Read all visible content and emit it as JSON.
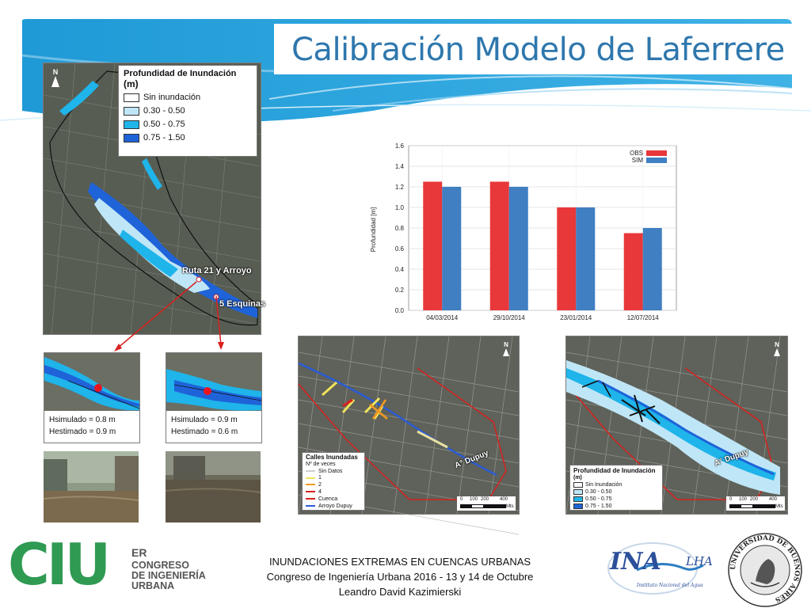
{
  "slide": {
    "title": "Calibración Modelo de Laferrere"
  },
  "main_map": {
    "north": "N",
    "legend_title": "Profundidad de Inundación",
    "legend_unit": "(m)",
    "legend": [
      {
        "label": "Sin inundación",
        "color": "#ffffff"
      },
      {
        "label": "0.30 - 0.50",
        "color": "#bfe6f7"
      },
      {
        "label": "0.50 - 0.75",
        "color": "#1fb4ea"
      },
      {
        "label": "0.75 - 1.50",
        "color": "#1f63d9"
      }
    ],
    "label_ruta": "Ruta 21 y Arroyo",
    "label_esquinas": "5 Esquinas"
  },
  "insets": [
    {
      "sim": "Hsimulado = 0.8 m",
      "est": "Hestimado = 0.9 m"
    },
    {
      "sim": "Hsimulado = 0.9 m",
      "est": "Hestimado = 0.6 m"
    }
  ],
  "map_left": {
    "north": "N",
    "legend_title": "Calles Inundadas",
    "legend_sub": "Nº de veces",
    "legend": [
      {
        "label": "Sin Datos",
        "color": "#cfcfcf"
      },
      {
        "label": "1",
        "color": "#f2e35a"
      },
      {
        "label": "2",
        "color": "#f39a1e"
      },
      {
        "label": "4",
        "color": "#d9201e"
      },
      {
        "label": "Cuenca",
        "color": "#d9201e"
      },
      {
        "label": "Arroyo Dupuy",
        "color": "#2a5bd7"
      }
    ],
    "label_dupuy": "A° Dupuy",
    "scale": [
      "0",
      "100",
      "200",
      "400"
    ],
    "scale_unit": "Mts"
  },
  "map_right": {
    "north": "N",
    "legend_title": "Profundidad de Inundación",
    "legend_unit": "(m)",
    "legend": [
      {
        "label": "Sin Inundación",
        "color": "#ffffff"
      },
      {
        "label": "0.30 - 0.50",
        "color": "#bfe6f7"
      },
      {
        "label": "0.50 - 0.75",
        "color": "#1fb4ea"
      },
      {
        "label": "0.75 - 1.50",
        "color": "#1f63d9"
      }
    ],
    "label_dupuy": "A° Dupuy",
    "scale": [
      "0",
      "100",
      "200",
      "400"
    ],
    "scale_unit": "Mts"
  },
  "chart_data": {
    "type": "bar",
    "categories": [
      "04/03/2014",
      "29/10/2014",
      "23/01/2014",
      "12/07/2014"
    ],
    "series": [
      {
        "name": "OBS",
        "color": "#e8383a",
        "values": [
          1.25,
          1.25,
          1.0,
          0.75
        ]
      },
      {
        "name": "SIM",
        "color": "#3f7fc2",
        "values": [
          1.2,
          1.2,
          1.0,
          0.8
        ]
      }
    ],
    "ylabel": "Profundidad [m]",
    "ylim": [
      0,
      1.6
    ],
    "yticks": [
      "0.0",
      "0.2",
      "0.4",
      "0.6",
      "0.8",
      "1.0",
      "1.2",
      "1.4",
      "1.6"
    ],
    "grid": true,
    "legend_position": "top-right"
  },
  "footer": {
    "line1": "INUNDACIONES EXTREMAS EN CUENCAS URBANAS",
    "line2": "Congreso de Ingeniería Urbana 2016 - 13 y 14 de Octubre",
    "line3": "Leandro David Kazimierski"
  },
  "logos": {
    "ciu_letters": "CIU",
    "ciu_er": "ER",
    "ciu_line1": "CONGRESO",
    "ciu_line2": "DE INGENIERÍA",
    "ciu_line3": "URBANA",
    "ina": "INA",
    "lha": "LHA",
    "ina_sub": "Instituto Nacional del Agua",
    "uba_text": "UNIVERSIDAD DE BUENOS AIRES"
  }
}
